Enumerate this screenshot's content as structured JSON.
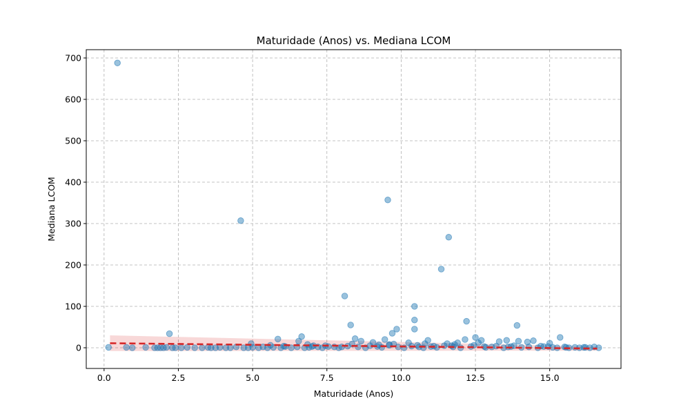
{
  "chart_data": {
    "type": "scatter",
    "title": "Maturidade (Anos) vs. Mediana LCOM",
    "xlabel": "Maturidade (Anos)",
    "ylabel": "Mediana LCOM",
    "xlim": [
      -0.6,
      17.4
    ],
    "ylim": [
      -50,
      720
    ],
    "xticks": [
      0.0,
      2.5,
      5.0,
      7.5,
      10.0,
      12.5,
      15.0
    ],
    "xtick_labels": [
      "0.0",
      "2.5",
      "5.0",
      "7.5",
      "10.0",
      "12.5",
      "15.0"
    ],
    "yticks": [
      0,
      100,
      200,
      300,
      400,
      500,
      600,
      700
    ],
    "ytick_labels": [
      "0",
      "100",
      "200",
      "300",
      "400",
      "500",
      "600",
      "700"
    ],
    "grid": true,
    "point_color": "#1f77b4",
    "regression_color": "#d62728",
    "regression": {
      "x": [
        0.2,
        16.6
      ],
      "y": [
        11,
        -2
      ],
      "ci_half_width": [
        19,
        5
      ]
    },
    "points": {
      "x": [
        0.45,
        4.6,
        9.55,
        11.6,
        11.35,
        8.1,
        10.45,
        10.45,
        12.2,
        13.9,
        8.3,
        10.45,
        9.85,
        9.7,
        2.2,
        6.65,
        12.5,
        15.35,
        12.7,
        8.45,
        9.45,
        10.9,
        12.15,
        13.55,
        14.45,
        14.25,
        13.95,
        13.3,
        11.9,
        5.85,
        6.55,
        8.65,
        9.05,
        10.25,
        11.55,
        12.6,
        15.0,
        0.15,
        0.75,
        0.95,
        1.4,
        1.7,
        1.8,
        1.9,
        2.0,
        2.1,
        2.3,
        2.4,
        2.6,
        2.8,
        3.05,
        3.3,
        3.5,
        3.6,
        3.75,
        3.9,
        4.1,
        4.25,
        4.45,
        4.7,
        4.85,
        5.0,
        5.2,
        5.35,
        5.5,
        5.7,
        5.95,
        6.1,
        6.3,
        6.5,
        6.75,
        6.9,
        7.05,
        7.2,
        7.35,
        7.55,
        7.75,
        7.9,
        8.2,
        8.55,
        8.8,
        8.95,
        9.2,
        9.35,
        9.6,
        9.9,
        10.1,
        10.35,
        10.6,
        10.75,
        11.0,
        11.2,
        11.45,
        11.75,
        12.0,
        12.35,
        12.85,
        13.05,
        13.2,
        13.45,
        13.7,
        14.05,
        14.3,
        14.6,
        14.8,
        15.1,
        15.25,
        15.5,
        15.65,
        15.85,
        16.0,
        16.2,
        16.35,
        16.5,
        16.65,
        5.6,
        6.05,
        7.0,
        7.45,
        8.0,
        9.25,
        9.75,
        10.55,
        11.1,
        11.7,
        12.8,
        13.6,
        14.7,
        15.55,
        4.95,
        6.85,
        8.35,
        9.6,
        10.8,
        11.8,
        12.45,
        13.8,
        14.95,
        16.15
      ],
      "y": [
        688,
        307,
        357,
        267,
        190,
        125,
        100,
        67,
        64,
        54,
        55,
        45,
        45,
        35,
        34,
        27,
        25,
        25,
        18,
        22,
        20,
        18,
        20,
        18,
        17,
        14,
        16,
        15,
        12,
        21,
        16,
        16,
        13,
        12,
        10,
        12,
        11,
        1,
        1,
        0,
        1,
        0,
        0,
        0,
        0,
        1,
        0,
        0,
        0,
        1,
        0,
        0,
        1,
        0,
        0,
        1,
        0,
        0,
        2,
        0,
        0,
        1,
        0,
        2,
        0,
        1,
        0,
        3,
        0,
        2,
        0,
        1,
        5,
        2,
        0,
        3,
        2,
        0,
        4,
        2,
        0,
        5,
        3,
        1,
        8,
        2,
        0,
        4,
        2,
        0,
        3,
        1,
        5,
        2,
        0,
        3,
        1,
        2,
        4,
        0,
        3,
        1,
        2,
        0,
        3,
        1,
        0,
        2,
        0,
        1,
        0,
        1,
        0,
        2,
        0,
        6,
        4,
        3,
        5,
        2,
        7,
        9,
        6,
        4,
        5,
        3,
        2,
        4,
        1,
        10,
        8,
        9,
        6,
        10,
        8,
        6,
        5,
        3,
        1
      ]
    }
  }
}
